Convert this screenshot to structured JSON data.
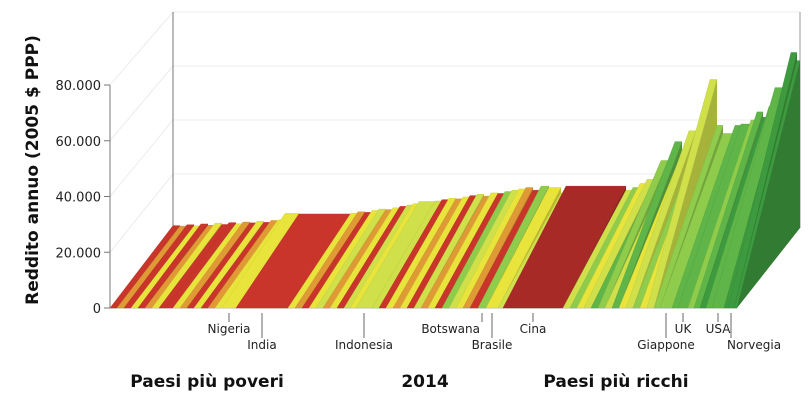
{
  "chart_data": {
    "type": "bar",
    "style": "3d",
    "ylabel": "Reddito annuo (2005 $ PPP)",
    "ylim": [
      0,
      80000
    ],
    "yticks": [
      {
        "value": 0,
        "label": "0"
      },
      {
        "value": 20000,
        "label": "20.000"
      },
      {
        "value": 40000,
        "label": "40.000"
      },
      {
        "value": 60000,
        "label": "60.000"
      },
      {
        "value": 80000,
        "label": "80.000"
      }
    ],
    "grid": true,
    "xlabel_left": "Paesi più poveri",
    "xlabel_center": "2014",
    "xlabel_right": "Paesi più ricchi",
    "palette": {
      "R": "#c9352b",
      "D": "#a82a27",
      "O": "#e09a35",
      "Y": "#e8e43c",
      "L": "#cfe04a",
      "G": "#8fcc4c",
      "M": "#5fb548",
      "K": "#3d9a3f"
    },
    "countries": [
      {
        "w": 7,
        "income": 900,
        "c": "R"
      },
      {
        "w": 7,
        "income": 700,
        "c": "O"
      },
      {
        "w": 7,
        "income": 1200,
        "c": "R"
      },
      {
        "w": 7,
        "income": 800,
        "c": "Y"
      },
      {
        "w": 7,
        "income": 1500,
        "c": "R"
      },
      {
        "w": 7,
        "income": 1000,
        "c": "O"
      },
      {
        "w": 7,
        "income": 1800,
        "c": "Y"
      },
      {
        "w": 7,
        "income": 1300,
        "c": "R"
      },
      {
        "w": 7,
        "income": 2000,
        "c": "R"
      },
      {
        "w": 7,
        "income": 1600,
        "c": "Y"
      },
      {
        "w": 7,
        "income": 2200,
        "c": "O"
      },
      {
        "w": 7,
        "income": 1900,
        "c": "R"
      },
      {
        "w": 7,
        "income": 2500,
        "c": "Y"
      },
      {
        "w": 7,
        "income": 2100,
        "c": "R"
      },
      {
        "w": 7,
        "income": 2800,
        "c": "O"
      },
      {
        "w": 7,
        "income": 3000,
        "c": "Y"
      },
      {
        "w": 14,
        "income": 5400,
        "c": "Y",
        "label": "Nigeria",
        "row": 0
      },
      {
        "w": 52,
        "income": 5200,
        "c": "R",
        "label": "India",
        "row": 1
      },
      {
        "w": 7,
        "income": 5500,
        "c": "Y"
      },
      {
        "w": 7,
        "income": 6000,
        "c": "O"
      },
      {
        "w": 7,
        "income": 5800,
        "c": "R"
      },
      {
        "w": 7,
        "income": 6500,
        "c": "Y"
      },
      {
        "w": 7,
        "income": 7000,
        "c": "L"
      },
      {
        "w": 7,
        "income": 6800,
        "c": "O"
      },
      {
        "w": 7,
        "income": 7500,
        "c": "Y"
      },
      {
        "w": 7,
        "income": 8000,
        "c": "R"
      },
      {
        "w": 6,
        "income": 8500,
        "c": "L"
      },
      {
        "w": 6,
        "income": 9000,
        "c": "Y"
      },
      {
        "w": 16,
        "income": 9800,
        "c": "L",
        "label": "Indonesia",
        "row": 1
      },
      {
        "w": 7,
        "income": 10000,
        "c": "L"
      },
      {
        "w": 7,
        "income": 10500,
        "c": "R"
      },
      {
        "w": 7,
        "income": 11000,
        "c": "Y"
      },
      {
        "w": 7,
        "income": 10800,
        "c": "O"
      },
      {
        "w": 7,
        "income": 11500,
        "c": "Y"
      },
      {
        "w": 7,
        "income": 12000,
        "c": "R"
      },
      {
        "w": 7,
        "income": 12500,
        "c": "L"
      },
      {
        "w": 7,
        "income": 11800,
        "c": "O"
      },
      {
        "w": 7,
        "income": 13000,
        "c": "Y"
      },
      {
        "w": 7,
        "income": 12800,
        "c": "R"
      },
      {
        "w": 7,
        "income": 13500,
        "c": "G"
      },
      {
        "w": 7,
        "income": 14000,
        "c": "L"
      },
      {
        "w": 7,
        "income": 14500,
        "c": "Y"
      },
      {
        "w": 7,
        "income": 15000,
        "c": "O"
      },
      {
        "w": 8,
        "income": 14000,
        "c": "R"
      },
      {
        "w": 8,
        "income": 15500,
        "c": "G",
        "label": "Botswana",
        "row": 0,
        "anchor": "end"
      },
      {
        "w": 12,
        "income": 15000,
        "c": "Y",
        "label": "Brasile",
        "row": 1
      },
      {
        "w": 5,
        "income": 13000,
        "c": "L"
      },
      {
        "w": 60,
        "income": 15500,
        "c": "D",
        "label": "Cina",
        "row": 0
      },
      {
        "w": 7,
        "income": 14000,
        "c": "L"
      },
      {
        "w": 7,
        "income": 15000,
        "c": "G"
      },
      {
        "w": 7,
        "income": 16500,
        "c": "Y"
      },
      {
        "w": 7,
        "income": 18000,
        "c": "L"
      },
      {
        "w": 7,
        "income": 17000,
        "c": "M"
      },
      {
        "w": 7,
        "income": 25000,
        "c": "G"
      },
      {
        "w": 7,
        "income": 22000,
        "c": "L"
      },
      {
        "w": 7,
        "income": 32000,
        "c": "M"
      },
      {
        "w": 7,
        "income": 28000,
        "c": "Y"
      },
      {
        "w": 7,
        "income": 36000,
        "c": "L"
      },
      {
        "w": 7,
        "income": 30000,
        "c": "G"
      },
      {
        "w": 7,
        "income": 34000,
        "c": "Y"
      },
      {
        "w": 7,
        "income": 55000,
        "c": "L"
      },
      {
        "w": 6,
        "income": 38000,
        "c": "G"
      },
      {
        "w": 12,
        "income": 35000,
        "c": "G",
        "label": "Giappone",
        "row": 1
      },
      {
        "w": 6,
        "income": 38000,
        "c": "M"
      },
      {
        "w": 10,
        "income": 38500,
        "c": "M",
        "label": "UK",
        "row": 0
      },
      {
        "w": 6,
        "income": 40000,
        "c": "G"
      },
      {
        "w": 6,
        "income": 43000,
        "c": "M"
      },
      {
        "w": 6,
        "income": 41000,
        "c": "K"
      },
      {
        "w": 6,
        "income": 45000,
        "c": "M"
      },
      {
        "w": 12,
        "income": 52000,
        "c": "M",
        "label": "USA",
        "row": 0
      },
      {
        "w": 4,
        "income": 55000,
        "c": "K"
      },
      {
        "w": 6,
        "income": 65000,
        "c": "K",
        "label": "Norvegia",
        "row": 1,
        "anchor": "start"
      },
      {
        "w": 3,
        "income": 62000,
        "c": "K"
      }
    ]
  }
}
